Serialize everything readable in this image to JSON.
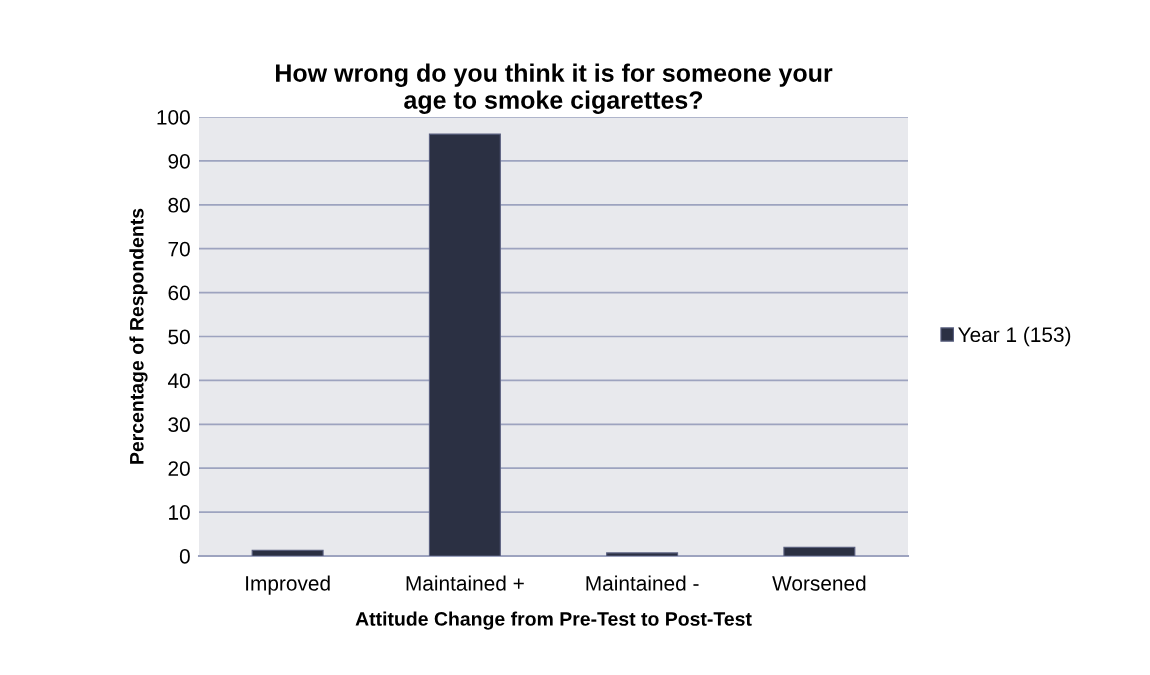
{
  "chart_data": {
    "type": "bar",
    "title": "How wrong do you think it is for someone your\nage to smoke cigarettes?",
    "xlabel": "Attitude Change from Pre-Test to Post-Test",
    "ylabel": "Percentage of Respondents",
    "categories": [
      "Improved",
      "Maintained +",
      "Maintained -",
      "Worsened"
    ],
    "series": [
      {
        "name": "Year 1 (153)",
        "color": "#2b3043",
        "values": [
          1.3,
          96.1,
          0.7,
          2.0
        ]
      }
    ],
    "ylim": [
      0,
      100
    ],
    "yticks": [
      0,
      10,
      20,
      30,
      40,
      50,
      60,
      70,
      80,
      90,
      100
    ],
    "grid": "y",
    "legend": "right"
  }
}
